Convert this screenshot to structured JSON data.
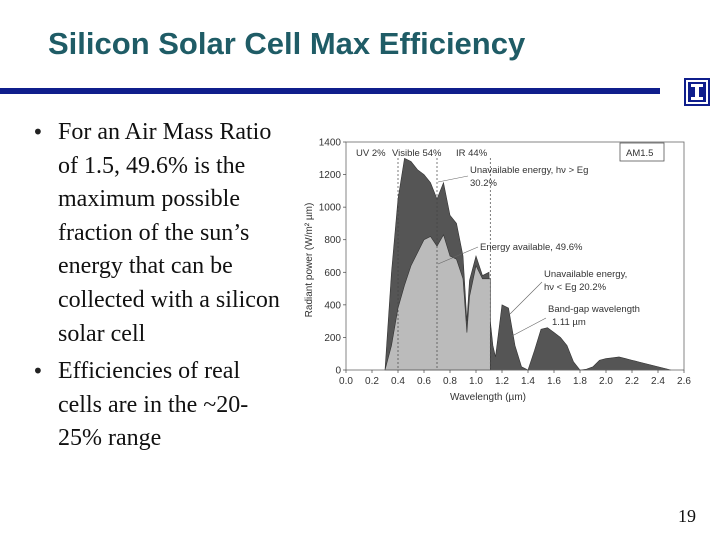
{
  "slide": {
    "title": "Silicon Solar Cell Max Efficiency",
    "number": "19"
  },
  "bullets": [
    "For an Air Mass Ratio of 1.5, 49.6% is the maximum possible fraction of the sun’s energy that can be collected with a silicon solar cell",
    "Efficiencies of real cells are in the ~20-25% range"
  ],
  "icons": {
    "bullet": "bullet-dot-icon",
    "logo": "university-i-logo-icon"
  },
  "colors": {
    "title": "#1f5c66",
    "rule": "#0f1e8c",
    "dark_fill": "#555555",
    "light_fill": "#bbbbbb"
  },
  "chart_data": {
    "type": "area",
    "title": "",
    "xlabel": "Wavelength (µm)",
    "ylabel": "Radiant power (W/m² µm)",
    "xlim": [
      0,
      2.6
    ],
    "ylim": [
      0,
      1400
    ],
    "xticks": [
      "0.0",
      "0.2",
      "0.4",
      "0.6",
      "0.8",
      "1.0",
      "1.2",
      "1.4",
      "1.6",
      "1.8",
      "2.0",
      "2.2",
      "2.4",
      "2.6"
    ],
    "yticks": [
      "0",
      "200",
      "400",
      "600",
      "800",
      "1000",
      "1200",
      "1400"
    ],
    "band_labels": [
      "UV 2%",
      "Visible 54%",
      "IR 44%"
    ],
    "legend_box": "AM1.5",
    "annotations": [
      "Unavailable energy, hν > Eg",
      "30.2%",
      "Energy available, 49.6%",
      "Unavailable energy,",
      "hν < Eg 20.2%",
      "Band-gap wavelength",
      "1.11 µm"
    ],
    "series": [
      {
        "x": [
          0.3,
          0.35,
          0.4,
          0.45,
          0.5,
          0.55,
          0.6,
          0.65,
          0.7,
          0.75,
          0.8,
          0.85,
          0.9,
          0.93,
          0.95,
          1.0,
          1.05,
          1.1,
          1.11,
          1.13,
          1.15,
          1.2,
          1.25,
          1.3,
          1.35,
          1.4,
          1.45,
          1.5,
          1.55,
          1.6,
          1.65,
          1.7,
          1.75,
          1.8,
          1.85,
          1.9,
          1.95,
          2.0,
          2.05,
          2.1,
          2.15,
          2.2,
          2.25,
          2.3,
          2.35,
          2.4,
          2.45,
          2.5
        ],
        "values": [
          0,
          600,
          1050,
          1300,
          1280,
          1230,
          1200,
          1150,
          1050,
          1150,
          950,
          900,
          700,
          300,
          550,
          700,
          580,
          600,
          300,
          150,
          80,
          400,
          380,
          150,
          20,
          0,
          120,
          250,
          260,
          230,
          200,
          150,
          50,
          0,
          5,
          20,
          60,
          70,
          75,
          80,
          70,
          60,
          50,
          40,
          30,
          20,
          10,
          0
        ]
      },
      {
        "x": [
          0.3,
          0.35,
          0.4,
          0.45,
          0.5,
          0.55,
          0.6,
          0.65,
          0.7,
          0.75,
          0.8,
          0.85,
          0.9,
          0.93,
          0.95,
          1.0,
          1.05,
          1.11
        ],
        "values": [
          0,
          150,
          380,
          520,
          640,
          720,
          800,
          820,
          760,
          830,
          700,
          680,
          560,
          230,
          450,
          640,
          560,
          560
        ]
      }
    ],
    "vlines_x": [
      0.4,
      0.7,
      1.11
    ],
    "grid": false,
    "legend_position": "top-right"
  }
}
